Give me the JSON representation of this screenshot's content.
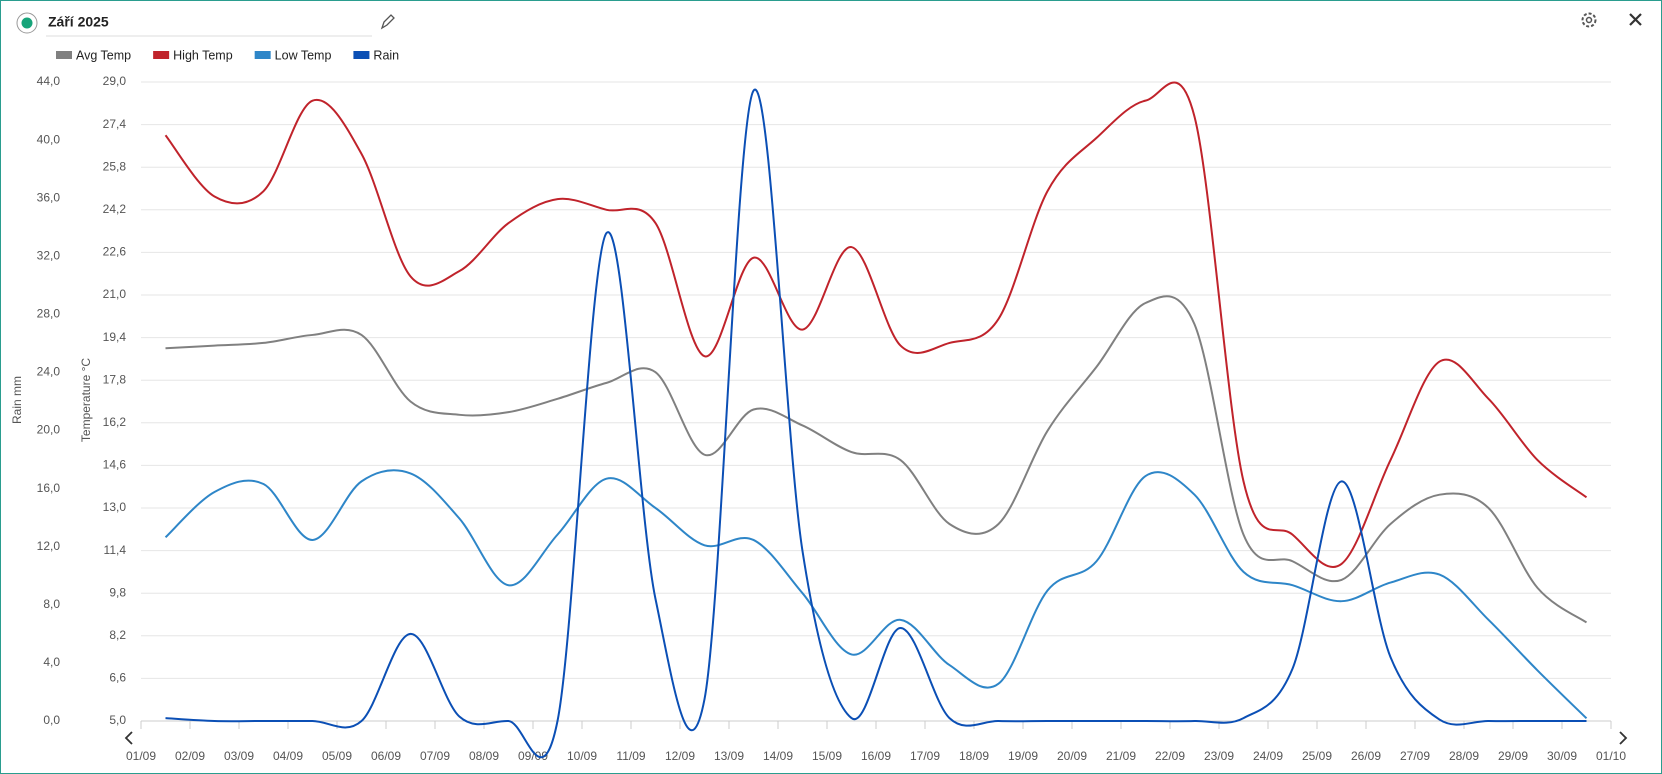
{
  "chart_data": {
    "type": "line",
    "title": "Září 2025",
    "ylabel": "Temperature °C",
    "y2label": "Rain mm",
    "xticks": [
      "01/09",
      "02/09",
      "03/09",
      "04/09",
      "05/09",
      "06/09",
      "07/09",
      "08/09",
      "09/09",
      "10/09",
      "11/09",
      "12/09",
      "13/09",
      "14/09",
      "15/09",
      "16/09",
      "17/09",
      "18/09",
      "19/09",
      "20/09",
      "21/09",
      "22/09",
      "23/09",
      "24/09",
      "25/09",
      "26/09",
      "27/09",
      "28/09",
      "29/09",
      "30/09",
      "01/10"
    ],
    "ylim": [
      5,
      29
    ],
    "yticks": [
      {
        "value": 5,
        "label": "5,0"
      },
      {
        "value": 6.6,
        "label": "6,6"
      },
      {
        "value": 8.2,
        "label": "8,2"
      },
      {
        "value": 9.8,
        "label": "9,8"
      },
      {
        "value": 11.4,
        "label": "11,4"
      },
      {
        "value": 13,
        "label": "13,0"
      },
      {
        "value": 14.6,
        "label": "14,6"
      },
      {
        "value": 16.2,
        "label": "16,2"
      },
      {
        "value": 17.8,
        "label": "17,8"
      },
      {
        "value": 19.4,
        "label": "19,4"
      },
      {
        "value": 21,
        "label": "21,0"
      },
      {
        "value": 22.6,
        "label": "22,6"
      },
      {
        "value": 24.2,
        "label": "24,2"
      },
      {
        "value": 25.8,
        "label": "25,8"
      },
      {
        "value": 27.4,
        "label": "27,4"
      },
      {
        "value": 29,
        "label": "29,0"
      }
    ],
    "y2lim": [
      0,
      44
    ],
    "y2ticks": [
      {
        "value": 0,
        "label": "0,0"
      },
      {
        "value": 4,
        "label": "4,0"
      },
      {
        "value": 8,
        "label": "8,0"
      },
      {
        "value": 12,
        "label": "12,0"
      },
      {
        "value": 16,
        "label": "16,0"
      },
      {
        "value": 20,
        "label": "20,0"
      },
      {
        "value": 24,
        "label": "24,0"
      },
      {
        "value": 28,
        "label": "28,0"
      },
      {
        "value": 32,
        "label": "32,0"
      },
      {
        "value": 36,
        "label": "36,0"
      },
      {
        "value": 40,
        "label": "40,0"
      },
      {
        "value": 44,
        "label": "44,0"
      }
    ],
    "grid": true,
    "series": [
      {
        "name": "Avg Temp",
        "color": "#808080",
        "values": [
          19.0,
          19.1,
          19.2,
          19.5,
          19.5,
          17.0,
          16.5,
          16.6,
          17.1,
          17.7,
          18.1,
          15.0,
          16.7,
          16.1,
          15.1,
          14.8,
          12.4,
          12.4,
          15.9,
          18.3,
          20.7,
          19.9,
          12.0,
          11.0,
          10.3,
          12.4,
          13.5,
          13.0,
          10.0,
          8.7
        ]
      },
      {
        "name": "High Temp",
        "color": "#c0232b",
        "values": [
          27.0,
          24.7,
          24.9,
          28.3,
          26.3,
          21.7,
          21.9,
          23.7,
          24.6,
          24.2,
          23.7,
          18.7,
          22.4,
          19.7,
          22.8,
          19.1,
          19.2,
          20.1,
          24.9,
          26.9,
          28.3,
          27.7,
          14.0,
          12.0,
          10.9,
          14.8,
          18.5,
          17.1,
          14.8,
          13.4
        ]
      },
      {
        "name": "Low Temp",
        "color": "#2e86c8",
        "values": [
          11.9,
          13.6,
          13.9,
          11.8,
          14.0,
          14.3,
          12.6,
          10.1,
          12.0,
          14.1,
          13.0,
          11.6,
          11.8,
          9.8,
          7.5,
          8.8,
          7.1,
          6.4,
          9.9,
          11.0,
          14.2,
          13.5,
          10.6,
          10.1,
          9.5,
          10.2,
          10.5,
          8.8,
          6.9,
          5.1
        ]
      },
      {
        "name": "Rain",
        "color": "#0b4fb5",
        "axis": "y2",
        "values": [
          0.2,
          0,
          0,
          0,
          0,
          6.0,
          0.3,
          0,
          0,
          33.6,
          8.4,
          1.5,
          43.4,
          11.7,
          0.2,
          6.4,
          0.2,
          0,
          0,
          0,
          0,
          0,
          0.2,
          3.6,
          16.5,
          4.4,
          0.1,
          0,
          0,
          0
        ]
      }
    ]
  }
}
